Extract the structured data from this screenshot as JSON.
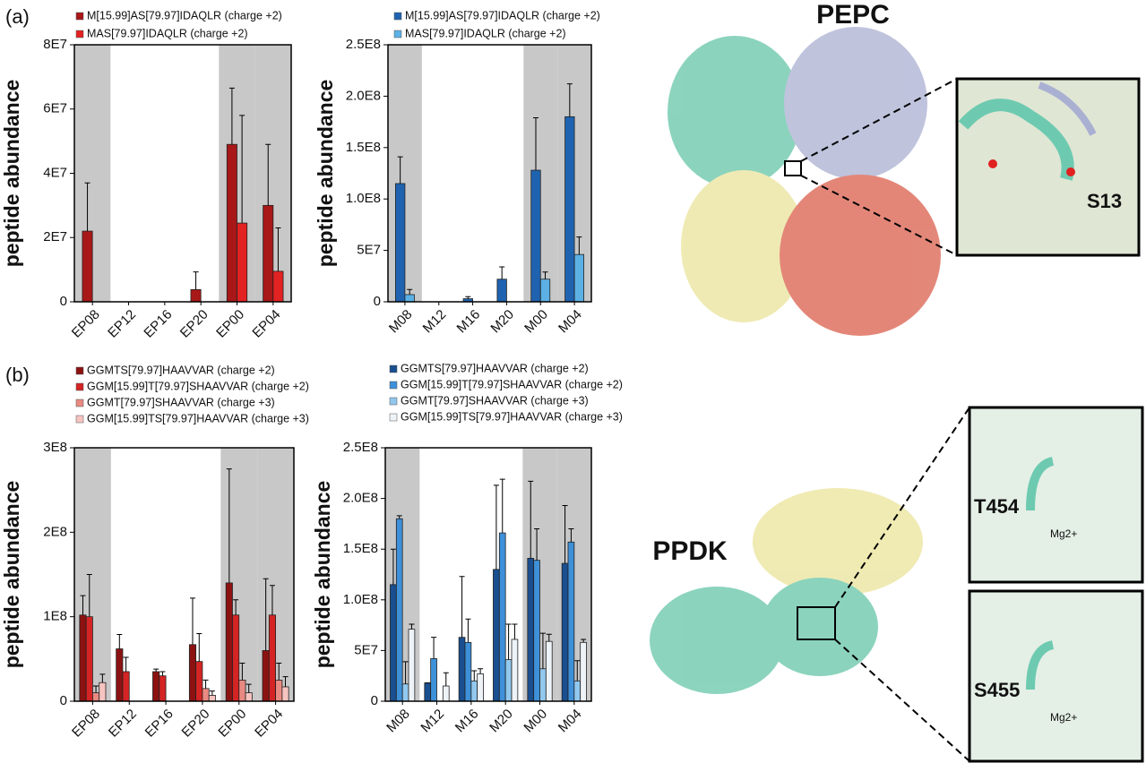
{
  "figure": {
    "panel_labels": [
      "(a)",
      "(b)"
    ],
    "structures": [
      {
        "title": "PEPC",
        "site": "S13"
      },
      {
        "title": "PPDK",
        "sites": [
          "T454",
          "S455"
        ],
        "ion": "Mg2+"
      }
    ]
  },
  "chart_data": [
    {
      "type": "bar",
      "ylabel": "peptide abundance",
      "categories": [
        "EP08",
        "EP12",
        "EP16",
        "EP20",
        "EP00",
        "EP04"
      ],
      "shaded": [
        true,
        false,
        false,
        false,
        true,
        true
      ],
      "shade_color": "#c8c8c8",
      "ylim": [
        0,
        80000000
      ],
      "yticks": [
        0,
        {
          "value": 20000000,
          "label": "2E7"
        },
        {
          "value": 40000000,
          "label": "4E7"
        },
        {
          "value": 60000000,
          "label": "6E7"
        },
        {
          "value": 80000000,
          "label": "8E7"
        }
      ],
      "series": [
        {
          "name": "M[15.99]AS[79.97]IDAQLR (charge +2)",
          "color": "#a81818",
          "values": [
            22000000,
            0,
            0,
            3800000,
            49000000,
            30000000
          ],
          "errors": [
            15000000,
            0,
            0,
            5500000,
            17500000,
            19000000
          ]
        },
        {
          "name": "MAS[79.97]IDAQLR (charge +2)",
          "color": "#e32222",
          "values": [
            0,
            0,
            0,
            0,
            24500000,
            9500000
          ],
          "errors": [
            0,
            0,
            0,
            0,
            33500000,
            13500000
          ]
        }
      ]
    },
    {
      "type": "bar",
      "ylabel": "peptide abundance",
      "categories": [
        "M08",
        "M12",
        "M16",
        "M20",
        "M00",
        "M04"
      ],
      "shaded": [
        true,
        false,
        false,
        false,
        true,
        true
      ],
      "shade_color": "#c8c8c8",
      "ylim": [
        0,
        250000000
      ],
      "yticks": [
        0,
        {
          "value": 50000000,
          "label": "5E7"
        },
        {
          "value": 100000000,
          "label": "1.0E8"
        },
        {
          "value": 150000000,
          "label": "1.5E8"
        },
        {
          "value": 200000000,
          "label": "2.0E8"
        },
        {
          "value": 250000000,
          "label": "2.5E8"
        }
      ],
      "series": [
        {
          "name": "M[15.99]AS[79.97]IDAQLR (charge +2)",
          "color": "#1f63b0",
          "values": [
            115000000,
            0,
            3000000,
            22000000,
            128000000,
            180000000
          ],
          "errors": [
            26000000,
            0,
            2000000,
            12000000,
            51000000,
            32000000
          ]
        },
        {
          "name": "MAS[79.97]IDAQLR (charge +2)",
          "color": "#5cb0e4",
          "values": [
            7000000,
            0,
            0,
            0,
            22000000,
            46000000
          ],
          "errors": [
            5000000,
            0,
            0,
            0,
            7000000,
            17000000
          ]
        }
      ]
    },
    {
      "type": "bar",
      "ylabel": "peptide abundance",
      "categories": [
        "EP08",
        "EP12",
        "EP16",
        "EP20",
        "EP00",
        "EP04"
      ],
      "shaded": [
        true,
        false,
        false,
        false,
        true,
        true
      ],
      "shade_color": "#c8c8c8",
      "ylim": [
        0,
        300000000
      ],
      "yticks": [
        0,
        {
          "value": 100000000,
          "label": "1E8"
        },
        {
          "value": 200000000,
          "label": "2E8"
        },
        {
          "value": 300000000,
          "label": "3E8"
        }
      ],
      "series": [
        {
          "name": "GGMTS[79.97]HAAVVAR (charge +2)",
          "color": "#8c1212",
          "values": [
            102000000,
            62000000,
            35000000,
            67000000,
            140000000,
            60000000
          ],
          "errors": [
            23000000,
            17000000,
            3000000,
            55000000,
            135000000,
            85000000
          ]
        },
        {
          "name": "GGM[15.99]T[79.97]SHAAVVAR (charge +2)",
          "color": "#d42424",
          "values": [
            100000000,
            35000000,
            30000000,
            47000000,
            102000000,
            102000000
          ],
          "errors": [
            50000000,
            17000000,
            5000000,
            33000000,
            18000000,
            35000000
          ]
        },
        {
          "name": "GGMT[79.97]SHAAVVAR (charge +3)",
          "color": "#e98a82",
          "values": [
            10000000,
            0,
            0,
            15000000,
            25000000,
            25000000
          ],
          "errors": [
            8000000,
            0,
            0,
            10000000,
            20000000,
            20000000
          ]
        },
        {
          "name": "GGM[15.99]TS[79.97]HAAVVAR (charge +3)",
          "color": "#f6c4c0",
          "values": [
            22000000,
            0,
            0,
            7000000,
            10000000,
            17000000
          ],
          "errors": [
            10000000,
            0,
            0,
            5000000,
            10000000,
            12000000
          ]
        }
      ]
    },
    {
      "type": "bar",
      "ylabel": "peptide abundance",
      "categories": [
        "M08",
        "M12",
        "M16",
        "M20",
        "M00",
        "M04"
      ],
      "shaded": [
        true,
        false,
        false,
        false,
        true,
        true
      ],
      "shade_color": "#c8c8c8",
      "ylim": [
        0,
        250000000
      ],
      "yticks": [
        0,
        {
          "value": 50000000,
          "label": "5E7"
        },
        {
          "value": 100000000,
          "label": "1.0E8"
        },
        {
          "value": 150000000,
          "label": "1.5E8"
        },
        {
          "value": 200000000,
          "label": "2.0E8"
        },
        {
          "value": 250000000,
          "label": "2.5E8"
        }
      ],
      "series": [
        {
          "name": "GGMTS[79.97]HAAVVAR (charge +2)",
          "color": "#1a4f90",
          "values": [
            115000000,
            18000000,
            63000000,
            130000000,
            141000000,
            136000000
          ],
          "errors": [
            35000000,
            0,
            60000000,
            83000000,
            76000000,
            57000000
          ]
        },
        {
          "name": "GGM[15.99]T[79.97]SHAAVVAR (charge +2)",
          "color": "#3e90d8",
          "values": [
            180000000,
            42000000,
            58000000,
            166000000,
            139000000,
            157000000
          ],
          "errors": [
            3000000,
            21000000,
            23000000,
            53000000,
            31000000,
            13000000
          ]
        },
        {
          "name": "GGMT[79.97]SHAAVVAR (charge +3)",
          "color": "#92c8ee",
          "values": [
            17000000,
            0,
            20000000,
            41000000,
            32000000,
            20000000
          ],
          "errors": [
            22000000,
            0,
            10000000,
            35000000,
            35000000,
            20000000
          ]
        },
        {
          "name": "GGM[15.99]TS[79.97]HAAVVAR (charge +3)",
          "color": "#eef3f8",
          "values": [
            71000000,
            15000000,
            27000000,
            61000000,
            59000000,
            58000000
          ],
          "errors": [
            5000000,
            13000000,
            5000000,
            15000000,
            7000000,
            3000000
          ]
        }
      ]
    }
  ]
}
